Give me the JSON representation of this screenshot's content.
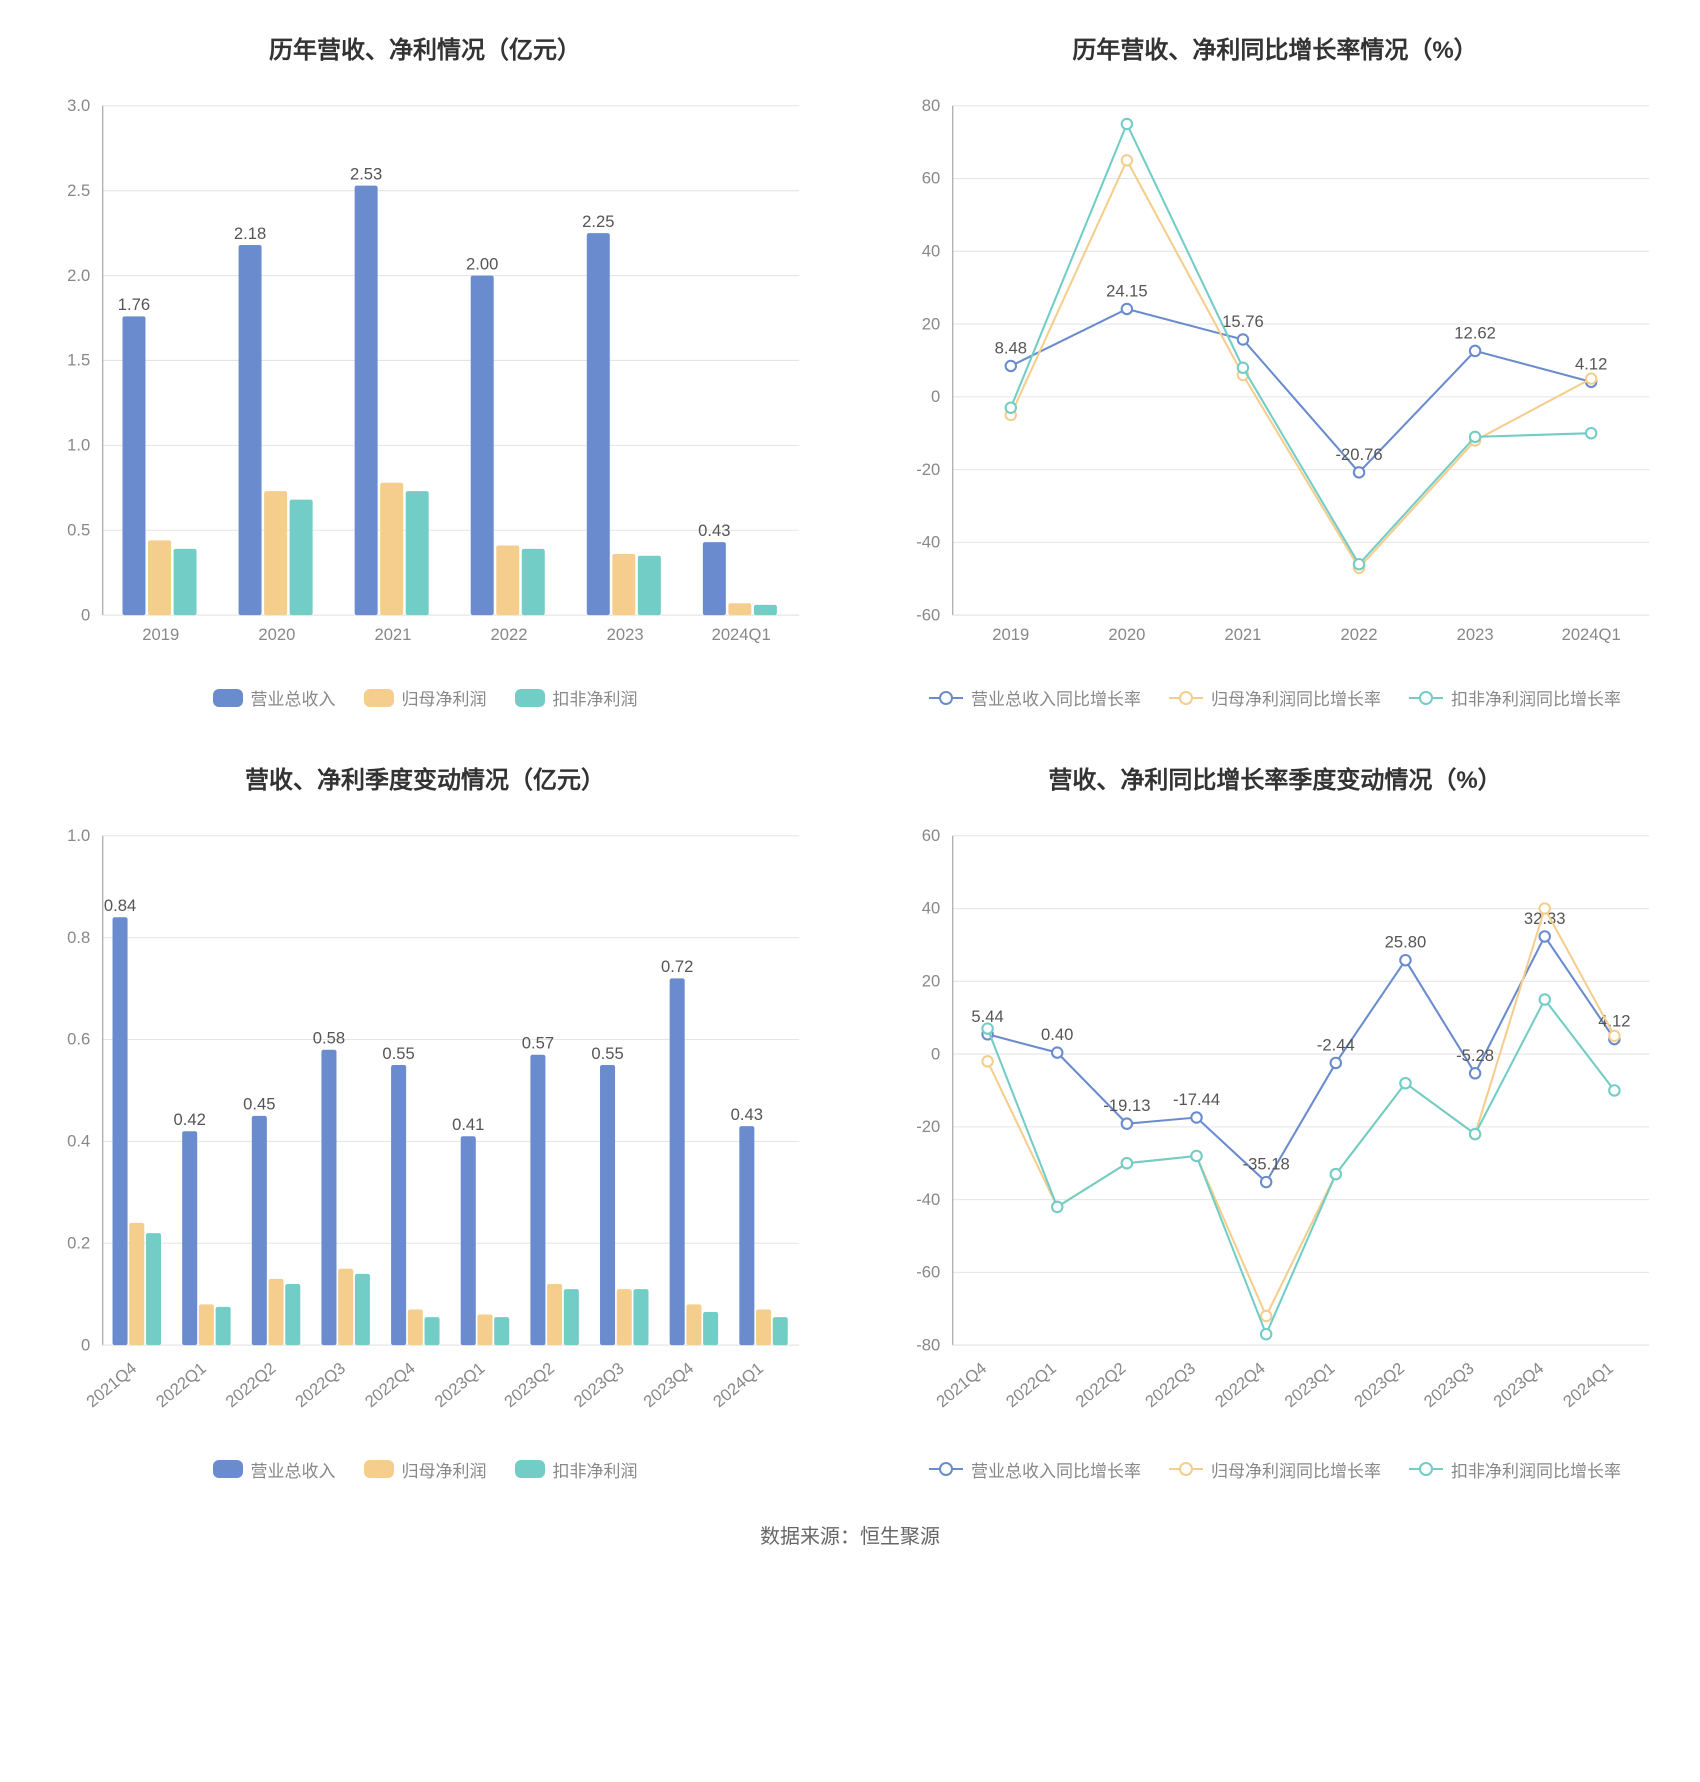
{
  "source_text": "数据来源：恒生聚源",
  "colors": {
    "series1": "#6a8cce",
    "series2": "#f5ce8e",
    "series3": "#72cdc6",
    "grid": "#e5e5e5",
    "axis": "#999999",
    "text": "#888888",
    "valueLabel": "#555555",
    "background": "#ffffff"
  },
  "charts": {
    "annual_bar": {
      "title": "历年营收、净利情况（亿元）",
      "type": "bar",
      "categories": [
        "2019",
        "2020",
        "2021",
        "2022",
        "2023",
        "2024Q1"
      ],
      "series": [
        {
          "name": "营业总收入",
          "color": "#6a8cce",
          "values": [
            1.76,
            2.18,
            2.53,
            2.0,
            2.25,
            0.43
          ],
          "show_labels": true
        },
        {
          "name": "归母净利润",
          "color": "#f5ce8e",
          "values": [
            0.44,
            0.73,
            0.78,
            0.41,
            0.36,
            0.07
          ],
          "show_labels": false
        },
        {
          "name": "扣非净利润",
          "color": "#72cdc6",
          "values": [
            0.39,
            0.68,
            0.73,
            0.39,
            0.35,
            0.06
          ],
          "show_labels": false
        }
      ],
      "ylim": [
        0,
        3
      ],
      "ytick_step": 0.5,
      "bar_width": 0.22,
      "group_gap": 0.34,
      "value_decimals": 2
    },
    "annual_line": {
      "title": "历年营收、净利同比增长率情况（%）",
      "type": "line",
      "categories": [
        "2019",
        "2020",
        "2021",
        "2022",
        "2023",
        "2024Q1"
      ],
      "series": [
        {
          "name": "营业总收入同比增长率",
          "color": "#6a8cce",
          "values": [
            8.48,
            24.15,
            15.76,
            -20.76,
            12.62,
            4.12
          ],
          "show_labels": true
        },
        {
          "name": "归母净利润同比增长率",
          "color": "#f5ce8e",
          "values": [
            -5,
            65,
            6,
            -47,
            -12,
            5
          ],
          "show_labels": false
        },
        {
          "name": "扣非净利润同比增长率",
          "color": "#72cdc6",
          "values": [
            -3,
            75,
            8,
            -46,
            -11,
            -10
          ],
          "show_labels": false
        }
      ],
      "ylim": [
        -60,
        80
      ],
      "ytick_step": 20,
      "marker_radius": 5,
      "value_decimals": 2
    },
    "quarterly_bar": {
      "title": "营收、净利季度变动情况（亿元）",
      "type": "bar",
      "categories": [
        "2021Q4",
        "2022Q1",
        "2022Q2",
        "2022Q3",
        "2022Q4",
        "2023Q1",
        "2023Q2",
        "2023Q3",
        "2023Q4",
        "2024Q1"
      ],
      "series": [
        {
          "name": "营业总收入",
          "color": "#6a8cce",
          "values": [
            0.84,
            0.42,
            0.45,
            0.58,
            0.55,
            0.41,
            0.57,
            0.55,
            0.72,
            0.43
          ],
          "show_labels": true
        },
        {
          "name": "归母净利润",
          "color": "#f5ce8e",
          "values": [
            0.24,
            0.08,
            0.13,
            0.15,
            0.07,
            0.06,
            0.12,
            0.11,
            0.08,
            0.07
          ],
          "show_labels": false
        },
        {
          "name": "扣非净利润",
          "color": "#72cdc6",
          "values": [
            0.22,
            0.075,
            0.12,
            0.14,
            0.055,
            0.055,
            0.11,
            0.11,
            0.065,
            0.055
          ],
          "show_labels": false
        }
      ],
      "ylim": [
        0,
        1
      ],
      "ytick_step": 0.2,
      "bar_width": 0.24,
      "group_gap": 0.28,
      "rotate_x_labels": true,
      "value_decimals": 2
    },
    "quarterly_line": {
      "title": "营收、净利同比增长率季度变动情况（%）",
      "type": "line",
      "categories": [
        "2021Q4",
        "2022Q1",
        "2022Q2",
        "2022Q3",
        "2022Q4",
        "2023Q1",
        "2023Q2",
        "2023Q3",
        "2023Q4",
        "2024Q1"
      ],
      "series": [
        {
          "name": "营业总收入同比增长率",
          "color": "#6a8cce",
          "values": [
            5.44,
            0.4,
            -19.13,
            -17.44,
            -35.18,
            -2.44,
            25.8,
            -5.28,
            32.33,
            4.12
          ],
          "show_labels": true
        },
        {
          "name": "归母净利润同比增长率",
          "color": "#f5ce8e",
          "values": [
            -2,
            -42,
            -30,
            -28,
            -72,
            -33,
            -8,
            -22,
            40,
            5
          ],
          "show_labels": false
        },
        {
          "name": "扣非净利润同比增长率",
          "color": "#72cdc6",
          "values": [
            7,
            -42,
            -30,
            -28,
            -77,
            -33,
            -8,
            -22,
            15,
            -10
          ],
          "show_labels": false
        }
      ],
      "ylim": [
        -80,
        60
      ],
      "ytick_step": 20,
      "marker_radius": 5,
      "rotate_x_labels": true,
      "value_decimals": 2
    }
  }
}
